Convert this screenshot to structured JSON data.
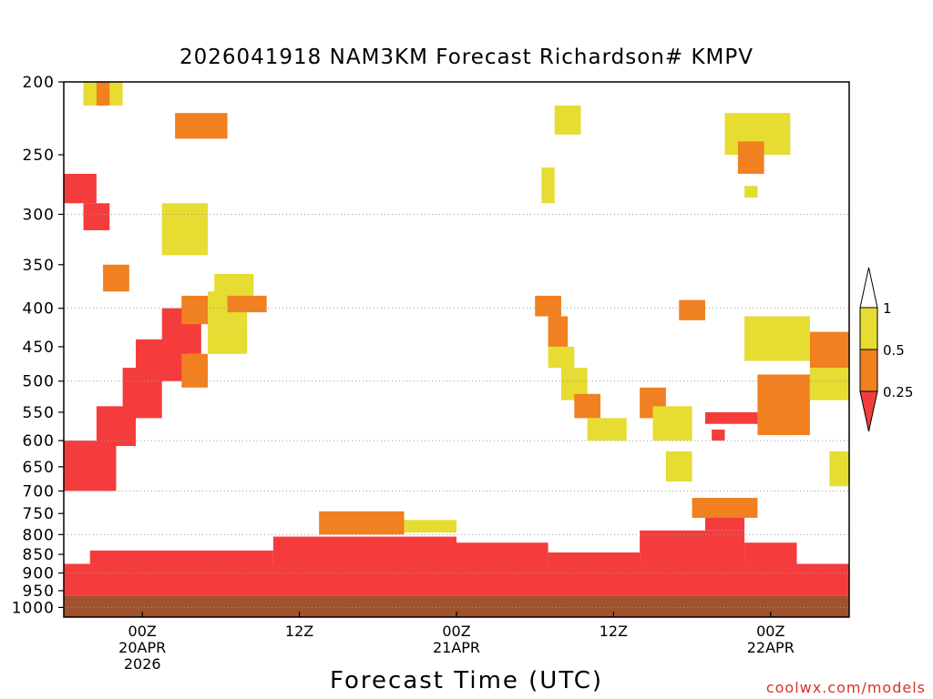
{
  "chart_data": {
    "type": "heatmap",
    "title": "2026041918 NAM3KM Forecast Richardson# KMPV",
    "xlabel": "Forecast Time (UTC)",
    "ylabel": "",
    "y_axis": {
      "scale": "log-pressure, inverted",
      "range": [
        1000,
        200
      ],
      "ticks": [
        200,
        250,
        300,
        350,
        400,
        450,
        500,
        550,
        600,
        650,
        700,
        750,
        800,
        850,
        900,
        950,
        1000
      ],
      "dotted_gridlines": [
        300,
        400,
        500,
        600,
        700,
        800,
        900,
        1000
      ]
    },
    "x_axis": {
      "range_hours_from_init": [
        0,
        60
      ],
      "ticks": [
        {
          "hour": 6,
          "lines": [
            "00Z",
            "20APR",
            "2026"
          ]
        },
        {
          "hour": 18,
          "lines": [
            "12Z"
          ]
        },
        {
          "hour": 30,
          "lines": [
            "00Z",
            "21APR"
          ]
        },
        {
          "hour": 42,
          "lines": [
            "12Z"
          ]
        },
        {
          "hour": 54,
          "lines": [
            "00Z",
            "22APR"
          ]
        }
      ]
    },
    "colorbar": {
      "bins": [
        {
          "range": "< 0.25",
          "color": "#f53c3c"
        },
        {
          "range": "0.25 - 0.5",
          "color": "#f08020"
        },
        {
          "range": "0.5 - 1",
          "color": "#e6dc32"
        },
        {
          "range": "> 1",
          "color": "#ffffff"
        }
      ],
      "labels": [
        "1",
        "0.5",
        "0.25"
      ]
    },
    "ground_color": "#a0522d",
    "regions": [
      {
        "x": [
          0,
          60
        ],
        "p": [
          965,
          1030
        ],
        "bin": "ground"
      },
      {
        "x": [
          0,
          60
        ],
        "p": [
          875,
          965
        ],
        "bin": "<0.25"
      },
      {
        "x": [
          2,
          16
        ],
        "p": [
          840,
          875
        ],
        "bin": "<0.25"
      },
      {
        "x": [
          16,
          30
        ],
        "p": [
          805,
          875
        ],
        "bin": "<0.25"
      },
      {
        "x": [
          30,
          37
        ],
        "p": [
          820,
          875
        ],
        "bin": "<0.25"
      },
      {
        "x": [
          37,
          44
        ],
        "p": [
          845,
          875
        ],
        "bin": "<0.25"
      },
      {
        "x": [
          44,
          52
        ],
        "p": [
          790,
          875
        ],
        "bin": "<0.25"
      },
      {
        "x": [
          49,
          52
        ],
        "p": [
          730,
          790
        ],
        "bin": "<0.25"
      },
      {
        "x": [
          52,
          56
        ],
        "p": [
          820,
          875
        ],
        "bin": "<0.25"
      },
      {
        "x": [
          19.5,
          26
        ],
        "p": [
          745,
          800
        ],
        "bin": "0.25-0.5"
      },
      {
        "x": [
          26,
          30
        ],
        "p": [
          765,
          795
        ],
        "bin": "0.5-1"
      },
      {
        "x": [
          48,
          53
        ],
        "p": [
          715,
          760
        ],
        "bin": "0.25-0.5"
      },
      {
        "x": [
          0,
          4
        ],
        "p": [
          600,
          700
        ],
        "bin": "<0.25"
      },
      {
        "x": [
          2.5,
          5.5
        ],
        "p": [
          540,
          610
        ],
        "bin": "<0.25"
      },
      {
        "x": [
          4.5,
          7.5
        ],
        "p": [
          480,
          560
        ],
        "bin": "<0.25"
      },
      {
        "x": [
          5.5,
          9.5
        ],
        "p": [
          440,
          500
        ],
        "bin": "<0.25"
      },
      {
        "x": [
          7.5,
          10.5
        ],
        "p": [
          400,
          460
        ],
        "bin": "<0.25"
      },
      {
        "x": [
          9,
          11
        ],
        "p": [
          385,
          420
        ],
        "bin": "0.25-0.5"
      },
      {
        "x": [
          9,
          11
        ],
        "p": [
          460,
          510
        ],
        "bin": "0.25-0.5"
      },
      {
        "x": [
          11,
          14
        ],
        "p": [
          380,
          420
        ],
        "bin": "0.5-1"
      },
      {
        "x": [
          11,
          14
        ],
        "p": [
          420,
          460
        ],
        "bin": "0.5-1"
      },
      {
        "x": [
          0,
          2.5
        ],
        "p": [
          265,
          290
        ],
        "bin": "<0.25"
      },
      {
        "x": [
          1.5,
          3.5
        ],
        "p": [
          290,
          315
        ],
        "bin": "<0.25"
      },
      {
        "x": [
          7.5,
          11
        ],
        "p": [
          290,
          340
        ],
        "bin": "0.5-1"
      },
      {
        "x": [
          8.5,
          12.5
        ],
        "p": [
          220,
          238
        ],
        "bin": "0.25-0.5"
      },
      {
        "x": [
          1.5,
          4.5
        ],
        "p": [
          200,
          215
        ],
        "bin": "0.5-1"
      },
      {
        "x": [
          2.5,
          3.5
        ],
        "p": [
          200,
          215
        ],
        "bin": "0.25-0.5"
      },
      {
        "x": [
          3,
          5
        ],
        "p": [
          350,
          380
        ],
        "bin": "0.25-0.5"
      },
      {
        "x": [
          11.5,
          14.5
        ],
        "p": [
          360,
          385
        ],
        "bin": "0.5-1"
      },
      {
        "x": [
          12.5,
          15.5
        ],
        "p": [
          385,
          405
        ],
        "bin": "0.25-0.5"
      },
      {
        "x": [
          36,
          38
        ],
        "p": [
          385,
          410
        ],
        "bin": "0.25-0.5"
      },
      {
        "x": [
          37,
          38.5
        ],
        "p": [
          410,
          450
        ],
        "bin": "0.25-0.5"
      },
      {
        "x": [
          37,
          39
        ],
        "p": [
          450,
          480
        ],
        "bin": "0.5-1"
      },
      {
        "x": [
          38,
          40
        ],
        "p": [
          480,
          530
        ],
        "bin": "0.5-1"
      },
      {
        "x": [
          39,
          41
        ],
        "p": [
          520,
          560
        ],
        "bin": "0.25-0.5"
      },
      {
        "x": [
          40,
          43
        ],
        "p": [
          560,
          600
        ],
        "bin": "0.5-1"
      },
      {
        "x": [
          44,
          46
        ],
        "p": [
          510,
          560
        ],
        "bin": "0.25-0.5"
      },
      {
        "x": [
          45,
          48
        ],
        "p": [
          540,
          600
        ],
        "bin": "0.5-1"
      },
      {
        "x": [
          46,
          48
        ],
        "p": [
          620,
          680
        ],
        "bin": "0.5-1"
      },
      {
        "x": [
          47,
          49
        ],
        "p": [
          390,
          415
        ],
        "bin": "0.25-0.5"
      },
      {
        "x": [
          52,
          57
        ],
        "p": [
          410,
          470
        ],
        "bin": "0.5-1"
      },
      {
        "x": [
          53,
          57
        ],
        "p": [
          490,
          590
        ],
        "bin": "0.25-0.5"
      },
      {
        "x": [
          57,
          60
        ],
        "p": [
          430,
          480
        ],
        "bin": "0.25-0.5"
      },
      {
        "x": [
          57,
          60
        ],
        "p": [
          480,
          530
        ],
        "bin": "0.5-1"
      },
      {
        "x": [
          58.5,
          60
        ],
        "p": [
          620,
          690
        ],
        "bin": "0.5-1"
      },
      {
        "x": [
          49,
          53
        ],
        "p": [
          550,
          570
        ],
        "bin": "<0.25"
      },
      {
        "x": [
          49.5,
          50.5
        ],
        "p": [
          580,
          600
        ],
        "bin": "<0.25"
      },
      {
        "x": [
          50.5,
          55.5
        ],
        "p": [
          220,
          250
        ],
        "bin": "0.5-1"
      },
      {
        "x": [
          51.5,
          53.5
        ],
        "p": [
          240,
          265
        ],
        "bin": "0.25-0.5"
      },
      {
        "x": [
          37.5,
          39.5
        ],
        "p": [
          215,
          235
        ],
        "bin": "0.5-1"
      },
      {
        "x": [
          52,
          53
        ],
        "p": [
          275,
          285
        ],
        "bin": "0.5-1"
      },
      {
        "x": [
          36.5,
          37.5
        ],
        "p": [
          260,
          290
        ],
        "bin": "0.5-1"
      }
    ]
  }
}
